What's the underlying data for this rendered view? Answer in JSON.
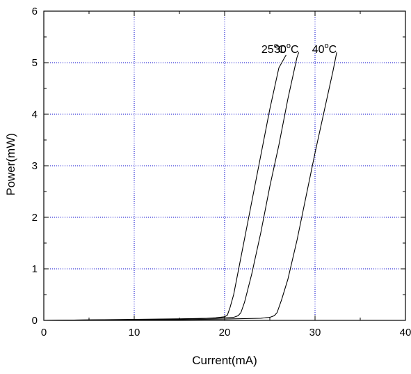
{
  "chart_data": {
    "type": "line",
    "title": "",
    "xlabel": "Current(mA)",
    "ylabel": "Power(mW)",
    "xlim": [
      0,
      40
    ],
    "ylim": [
      0,
      6
    ],
    "xticks": [
      0,
      10,
      20,
      30,
      40
    ],
    "yticks": [
      0,
      1,
      2,
      3,
      4,
      5,
      6
    ],
    "grid": true,
    "grid_color": "#0000cc",
    "line_color": "#000000",
    "series": [
      {
        "name": "25°C",
        "label_main": "25",
        "label_sup": "o",
        "label_unit": "C",
        "x": [
          0,
          5,
          10,
          15,
          18,
          19,
          20,
          20.3,
          20.6,
          21,
          22,
          23,
          24,
          25,
          26,
          26.8
        ],
        "y": [
          0,
          0.01,
          0.02,
          0.03,
          0.04,
          0.05,
          0.07,
          0.1,
          0.25,
          0.5,
          1.4,
          2.3,
          3.2,
          4.1,
          4.9,
          5.15
        ]
      },
      {
        "name": "30°C",
        "label_main": "30",
        "label_sup": "o",
        "label_unit": "C",
        "x": [
          0,
          5,
          10,
          15,
          19,
          21,
          21.5,
          21.8,
          22.2,
          23,
          24,
          25,
          26,
          27,
          28,
          28.2
        ],
        "y": [
          0,
          0.01,
          0.015,
          0.025,
          0.04,
          0.06,
          0.09,
          0.15,
          0.35,
          0.9,
          1.7,
          2.6,
          3.4,
          4.3,
          5.1,
          5.2
        ]
      },
      {
        "name": "40°C",
        "label_main": "40",
        "label_sup": "o",
        "label_unit": "C",
        "x": [
          0,
          5,
          10,
          15,
          20,
          24,
          25,
          25.5,
          25.8,
          26.3,
          27,
          28,
          29,
          30,
          31,
          32,
          32.4
        ],
        "y": [
          0,
          0.005,
          0.01,
          0.015,
          0.025,
          0.04,
          0.06,
          0.09,
          0.15,
          0.4,
          0.8,
          1.55,
          2.4,
          3.25,
          4.05,
          4.85,
          5.2
        ]
      }
    ]
  }
}
